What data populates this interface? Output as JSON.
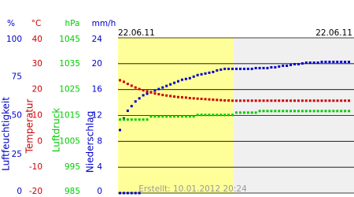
{
  "chart_data": {
    "type": "line",
    "dates": [
      "22.06.11",
      "22.06.11"
    ],
    "footer": "Erstellt: 10.01.2012 20:24",
    "grid": true,
    "axes": [
      {
        "unit": "%",
        "title": "Luftfeuchtigkeit",
        "color": "#0000cc",
        "ylim": [
          0,
          100
        ],
        "yticks": [
          100,
          75,
          50,
          25,
          0
        ],
        "values": [
          40.6,
          48,
          53,
          56,
          59,
          61,
          63,
          64,
          65,
          66,
          67,
          68,
          69,
          70,
          71,
          72,
          73,
          73.5,
          74,
          75,
          76,
          76.5,
          77,
          77.5,
          78,
          79,
          79.5,
          80,
          80,
          80,
          80,
          80,
          80,
          80,
          80,
          80.5,
          80.5,
          80.5,
          80.5,
          81,
          81,
          81.5,
          82,
          82,
          82.5,
          83,
          83,
          83.5,
          84,
          84,
          84,
          84,
          84.5,
          84.5,
          84.5,
          84.5,
          84.5,
          84.5,
          84.5,
          84.5
        ]
      },
      {
        "unit": "°C",
        "title": "Temperatur",
        "color": "#cc0000",
        "ylim": [
          -20,
          40
        ],
        "yticks": [
          40,
          30,
          20,
          10,
          0,
          -10,
          -20
        ],
        "values": [
          23.6,
          23,
          22.2,
          21.5,
          20.8,
          20.2,
          19.7,
          19.3,
          18.9,
          18.5,
          18.2,
          17.9,
          17.7,
          17.5,
          17.3,
          17.1,
          17,
          16.9,
          16.7,
          16.6,
          16.5,
          16.4,
          16.3,
          16.2,
          16.1,
          16,
          15.9,
          15.8,
          15.8,
          15.7,
          15.7,
          15.7,
          15.7,
          15.7,
          15.7,
          15.7,
          15.7,
          15.7,
          15.7,
          15.7,
          15.7,
          15.7,
          15.7,
          15.7,
          15.7,
          15.7,
          15.7,
          15.7,
          15.7,
          15.7,
          15.7,
          15.7,
          15.7,
          15.7,
          15.7,
          15.7,
          15.7,
          15.7,
          15.7,
          15.7
        ]
      },
      {
        "unit": "hPa",
        "title": "Luftdruck",
        "color": "#00cc00",
        "ylim": [
          985,
          1045
        ],
        "yticks": [
          1045,
          1035,
          1025,
          1015,
          1005,
          995,
          985
        ],
        "values": [
          1013.4,
          1013.4,
          1013.4,
          1013.4,
          1013.4,
          1013.4,
          1013.4,
          1013.4,
          1014.6,
          1014.6,
          1014.6,
          1014.6,
          1014.6,
          1014.6,
          1014.6,
          1014.6,
          1014.6,
          1014.6,
          1014.6,
          1014.6,
          1015.2,
          1015.2,
          1015.2,
          1015.2,
          1015.2,
          1015.2,
          1015.2,
          1015.2,
          1015.2,
          1015.2,
          1016.1,
          1016.1,
          1016.1,
          1016.1,
          1016.1,
          1016.1,
          1016.7,
          1016.7,
          1016.7,
          1016.7,
          1016.7,
          1016.7,
          1016.7,
          1016.7,
          1016.7,
          1016.7,
          1016.7,
          1016.7,
          1016.7,
          1016.7,
          1016.7,
          1016.7,
          1016.7,
          1016.7,
          1016.7,
          1016.7,
          1016.7,
          1016.7,
          1016.7,
          1016.7
        ]
      },
      {
        "unit": "mm/h",
        "title": "Niederschlag",
        "color": "#0000cc",
        "ylim": [
          0,
          24
        ],
        "yticks": [
          24,
          20,
          16,
          12,
          8,
          4,
          0
        ],
        "values": [
          0,
          0,
          0,
          0,
          0,
          0,
          null,
          null,
          null,
          null,
          null,
          null,
          null,
          null,
          null,
          null,
          null,
          null,
          null,
          null,
          null,
          null,
          null,
          null,
          null,
          null,
          null,
          null,
          null,
          null,
          null,
          null,
          null,
          null,
          null,
          null,
          null,
          null,
          null,
          null,
          null,
          null,
          null,
          null,
          null,
          null,
          null,
          null,
          null,
          null,
          null,
          null,
          null,
          null,
          null,
          null,
          null,
          null,
          null,
          null
        ]
      }
    ]
  }
}
